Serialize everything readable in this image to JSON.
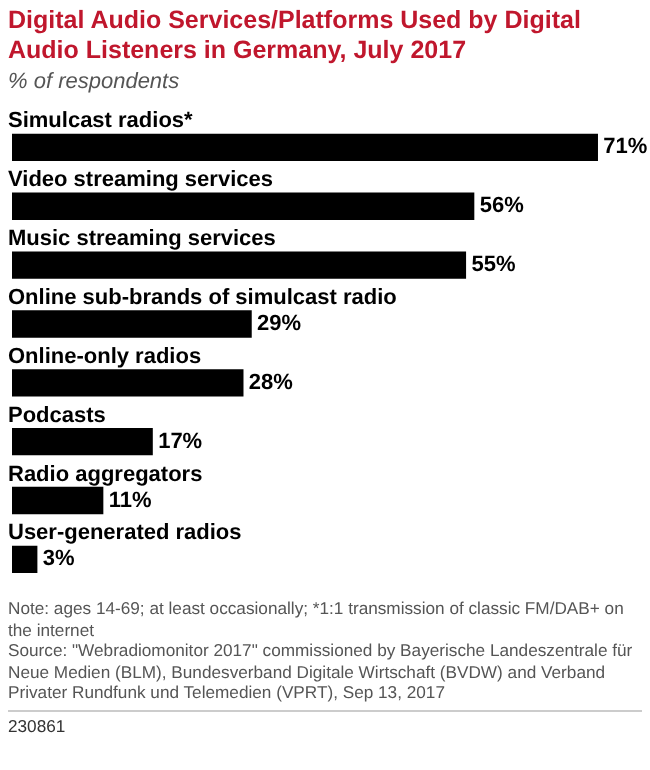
{
  "chart_data": {
    "type": "bar",
    "orientation": "horizontal",
    "title": "Digital Audio Services/Platforms Used by Digital Audio Listeners in Germany, July 2017",
    "subtitle": "% of respondents",
    "categories": [
      "Simulcast radios*",
      "Video streaming services",
      "Music streaming services",
      "Online sub-brands of simulcast radio",
      "Online-only radios",
      "Podcasts",
      "Radio aggregators",
      "User-generated radios"
    ],
    "values": [
      71,
      56,
      55,
      29,
      28,
      17,
      11,
      3
    ],
    "color": "#000000",
    "data_labels": true,
    "value_labels": [
      "71%",
      "56%",
      "55%",
      "29%",
      "28%",
      "17%",
      "11%",
      "3%"
    ],
    "annotations": [
      "Note: ages 14-69; at least occasionally; *1:1 transmission of classic FM/DAB+ on the internet",
      "Source: \"Webradiomonitor 2017\" commissioned by Bayerische Landeszentrale für Neue Medien (BLM), Bundesverband Digitale Wirtschaft (BVDW) and Verband Privater Rundfunk und Telemedien (VPRT), Sep 13, 2017",
      "230861"
    ]
  }
}
